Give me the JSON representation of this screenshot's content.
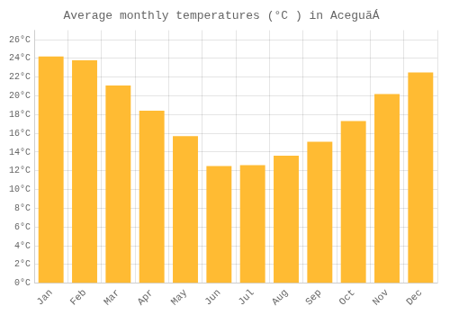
{
  "chart_data": {
    "type": "bar",
    "title": "Average monthly temperatures (°C ) in AceguãÁ",
    "categories": [
      "Jan",
      "Feb",
      "Mar",
      "Apr",
      "May",
      "Jun",
      "Jul",
      "Aug",
      "Sep",
      "Oct",
      "Nov",
      "Dec"
    ],
    "values": [
      24.2,
      23.8,
      21.1,
      18.4,
      15.7,
      12.5,
      12.6,
      13.6,
      15.1,
      17.3,
      20.2,
      22.5
    ],
    "color": "#FFBB33",
    "ylim": [
      0,
      27
    ],
    "yticks": [
      {
        "value": 0,
        "label": "0°C"
      },
      {
        "value": 2,
        "label": "2°C"
      },
      {
        "value": 4,
        "label": "4°C"
      },
      {
        "value": 6,
        "label": "6°C"
      },
      {
        "value": 8,
        "label": "8°C"
      },
      {
        "value": 10,
        "label": "10°C"
      },
      {
        "value": 12,
        "label": "12°C"
      },
      {
        "value": 14,
        "label": "14°C"
      },
      {
        "value": 16,
        "label": "16°C"
      },
      {
        "value": 18,
        "label": "18°C"
      },
      {
        "value": 20,
        "label": "20°C"
      },
      {
        "value": 22,
        "label": "22°C"
      },
      {
        "value": 24,
        "label": "24°C"
      },
      {
        "value": 26,
        "label": "26°C"
      }
    ],
    "grid": true
  }
}
